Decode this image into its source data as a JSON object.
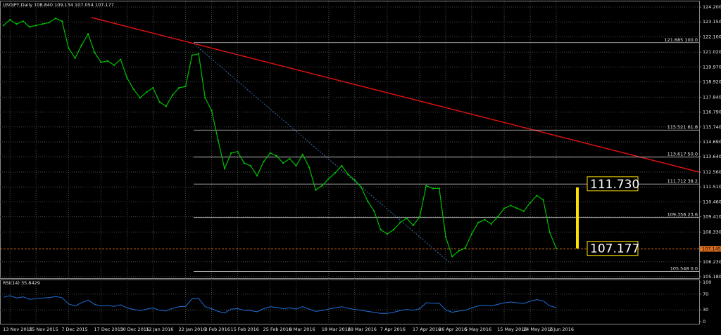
{
  "chart_data": {
    "type": "line",
    "title": "USDJPY,Daily  108.840 109.134 107.054 107.177",
    "categories": [
      null,
      "13 Nov 2015",
      null,
      null,
      null,
      "25 Nov 2015",
      null,
      null,
      null,
      null,
      "7 Dec 2015",
      null,
      null,
      null,
      null,
      "17 Dec 2015",
      null,
      null,
      null,
      "30 Dec 2015",
      null,
      null,
      null,
      "12 Jan 2016",
      null,
      null,
      null,
      null,
      "22 Jan 2016",
      null,
      null,
      null,
      "3 Feb 2016",
      null,
      null,
      null,
      "15 Feb 2016",
      null,
      null,
      null,
      null,
      "25 Feb 2016",
      null,
      null,
      null,
      "8 Mar 2016",
      null,
      null,
      null,
      null,
      "18 Mar 2016",
      null,
      null,
      null,
      "29 Mar 2016",
      null,
      null,
      null,
      null,
      "7 Apr 2016",
      null,
      null,
      null,
      null,
      "17 Apr 2016",
      null,
      null,
      null,
      "26 Apr 2016",
      null,
      null,
      null,
      "5 May 2016",
      null,
      null,
      null,
      null,
      "15 May 2016",
      null,
      null,
      null,
      "24 May 2016",
      null,
      null,
      null,
      "2 Jun 2016"
    ],
    "series": [
      {
        "name": "USDJPY",
        "color": "#00c000",
        "values": [
          122.9,
          123.3,
          123.0,
          123.2,
          122.8,
          122.9,
          123.0,
          123.1,
          123.4,
          123.2,
          121.3,
          120.6,
          121.5,
          122.3,
          121.0,
          120.3,
          120.4,
          120.1,
          120.5,
          119.2,
          118.4,
          117.8,
          118.2,
          118.5,
          117.5,
          117.2,
          118.0,
          118.5,
          118.6,
          120.8,
          120.9,
          117.8,
          116.9,
          114.8,
          112.8,
          113.9,
          114.0,
          113.2,
          113.0,
          112.3,
          113.3,
          113.9,
          113.7,
          113.2,
          113.5,
          113.0,
          113.8,
          112.9,
          111.3,
          111.6,
          112.1,
          112.5,
          113.0,
          112.4,
          112.0,
          111.5,
          110.5,
          109.8,
          108.5,
          108.2,
          108.5,
          109.0,
          109.3,
          108.8,
          109.4,
          111.6,
          111.4,
          111.4,
          108.0,
          106.6,
          107.0,
          107.2,
          108.2,
          109.0,
          109.2,
          108.9,
          109.4,
          110.0,
          110.2,
          110.0,
          109.8,
          110.4,
          110.9,
          110.6,
          108.3,
          107.177
        ]
      }
    ],
    "ylim": [
      105.18,
      124.2
    ],
    "yticks": [
      {
        "value": 124.2,
        "label": "124.200"
      },
      {
        "value": 123.15,
        "label": "123.150"
      },
      {
        "value": 122.1,
        "label": "122.100"
      },
      {
        "value": 121.02,
        "label": "121.020"
      },
      {
        "value": 119.97,
        "label": "119.970"
      },
      {
        "value": 118.92,
        "label": "118.920"
      },
      {
        "value": 117.84,
        "label": "117.840"
      },
      {
        "value": 116.79,
        "label": "116.790"
      },
      {
        "value": 115.74,
        "label": "115.740"
      },
      {
        "value": 114.69,
        "label": "114.690"
      },
      {
        "value": 113.64,
        "label": "113.640"
      },
      {
        "value": 112.56,
        "label": "112.560"
      },
      {
        "value": 111.51,
        "label": "111.510"
      },
      {
        "value": 110.46,
        "label": "110.460"
      },
      {
        "value": 109.41,
        "label": "109.410"
      },
      {
        "value": 108.33,
        "label": "108.330"
      },
      {
        "value": 106.23,
        "label": "106.230"
      },
      {
        "value": 105.18,
        "label": "105.180"
      }
    ],
    "grid": true,
    "fib_levels": [
      {
        "value": 121.685,
        "label": "121.685 100.0"
      },
      {
        "value": 115.521,
        "label": "115.521 61.8"
      },
      {
        "value": 113.617,
        "label": "113.617 50.0"
      },
      {
        "value": 111.712,
        "label": "111.712 38.2"
      },
      {
        "value": 109.356,
        "label": "109.356 23.6"
      },
      {
        "value": 105.548,
        "label": "105.548 0.0"
      }
    ],
    "current_price": {
      "value": 107.145,
      "label": "107.145"
    },
    "annotations": [
      {
        "value": 111.73,
        "label": "111.730"
      },
      {
        "value": 107.177,
        "label": "107.177"
      }
    ],
    "rsi": {
      "title": "RSI(14) 35.8429",
      "color": "#1e6fd9",
      "ylim": [
        0,
        100
      ],
      "yticks": [
        100,
        70,
        30,
        0
      ],
      "values": [
        62,
        66,
        60,
        63,
        57,
        58,
        60,
        61,
        64,
        61,
        45,
        40,
        48,
        55,
        44,
        40,
        41,
        39,
        43,
        35,
        31,
        28,
        32,
        35,
        29,
        27,
        34,
        38,
        39,
        58,
        59,
        38,
        33,
        26,
        22,
        32,
        33,
        29,
        28,
        25,
        33,
        38,
        36,
        33,
        35,
        32,
        38,
        32,
        26,
        28,
        32,
        35,
        38,
        34,
        31,
        29,
        26,
        24,
        21,
        21,
        24,
        28,
        31,
        29,
        33,
        48,
        47,
        47,
        30,
        24,
        27,
        29,
        35,
        40,
        42,
        40,
        44,
        48,
        50,
        48,
        46,
        52,
        56,
        53,
        40,
        35.8429
      ]
    }
  }
}
